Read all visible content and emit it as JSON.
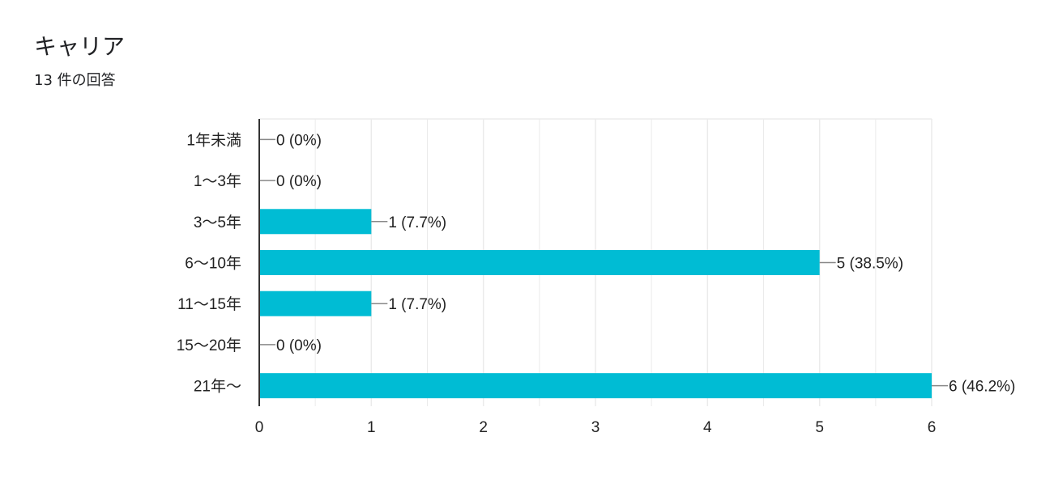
{
  "header": {
    "title": "キャリア",
    "response_count": "13 件の回答"
  },
  "colors": {
    "bar": "#00bcd4",
    "grid": "#ebebeb",
    "axis": "#333333",
    "leader": "#888888",
    "text": "#222222"
  },
  "chart_data": {
    "type": "bar",
    "orientation": "horizontal",
    "title": "",
    "xlabel": "",
    "ylabel": "",
    "categories": [
      "1年未満",
      "1〜3年",
      "3〜5年",
      "6〜10年",
      "11〜15年",
      "15〜20年",
      "21年〜"
    ],
    "values": [
      0,
      0,
      1,
      5,
      1,
      0,
      6
    ],
    "data_labels": [
      "0 (0%)",
      "0 (0%)",
      "1 (7.7%)",
      "5 (38.5%)",
      "1 (7.7%)",
      "0 (0%)",
      "6 (46.2%)"
    ],
    "xlim": [
      0,
      6
    ],
    "x_ticks": [
      "0",
      "1",
      "2",
      "3",
      "4",
      "5",
      "6"
    ],
    "grid": true
  }
}
